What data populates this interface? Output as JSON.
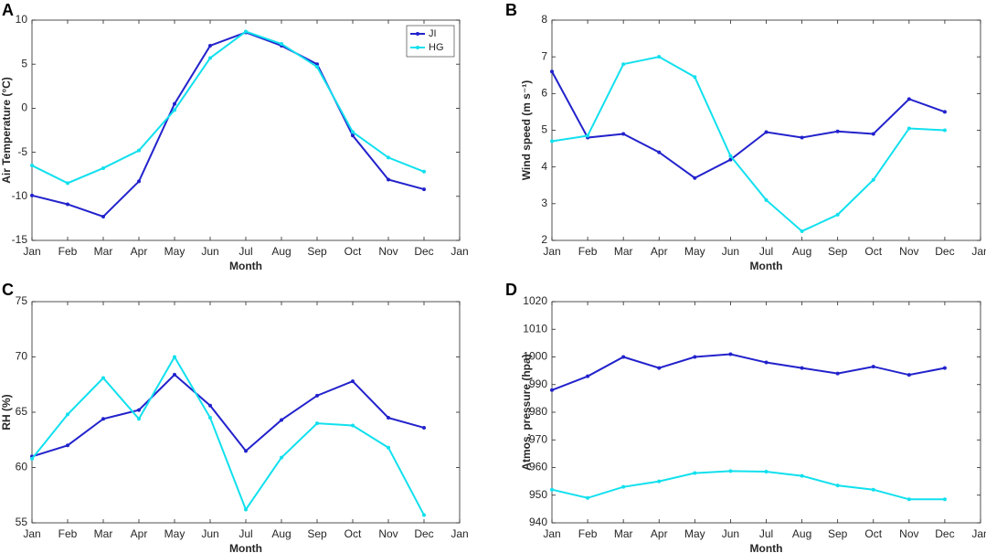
{
  "chart_data": [
    {
      "type": "line",
      "panel_label": "A",
      "ylabel": "Air Temperature (°C)",
      "xlabel": "Month",
      "categories": [
        "Jan",
        "Feb",
        "Mar",
        "Apr",
        "May",
        "Jun",
        "Jul",
        "Aug",
        "Sep",
        "Oct",
        "Nov",
        "Dec",
        "Jan"
      ],
      "ylim": [
        -15,
        10
      ],
      "yticks": [
        -15,
        -10,
        -5,
        0,
        5,
        10
      ],
      "legend": "northeast",
      "series": [
        {
          "name": "JI",
          "color": "#2222cc",
          "values": [
            -9.9,
            -10.9,
            -12.3,
            -8.3,
            0.5,
            7.1,
            8.6,
            7.1,
            5.0,
            -3.1,
            -8.1,
            -9.2,
            null
          ]
        },
        {
          "name": "HG",
          "color": "#11e0ee",
          "values": [
            -6.5,
            -8.5,
            -6.8,
            -4.8,
            -0.2,
            5.7,
            8.7,
            7.3,
            4.7,
            -2.7,
            -5.6,
            -7.2,
            null
          ]
        }
      ]
    },
    {
      "type": "line",
      "panel_label": "B",
      "ylabel": "Wind speed (m s⁻¹)",
      "xlabel": "Month",
      "categories": [
        "Jan",
        "Feb",
        "Mar",
        "Apr",
        "May",
        "Jun",
        "Jul",
        "Aug",
        "Sep",
        "Oct",
        "Nov",
        "Dec",
        "Jan"
      ],
      "ylim": [
        2,
        8
      ],
      "yticks": [
        2,
        3,
        4,
        5,
        6,
        7,
        8
      ],
      "series": [
        {
          "name": "JI",
          "color": "#2222cc",
          "values": [
            6.6,
            4.8,
            4.9,
            4.4,
            3.7,
            4.2,
            4.95,
            4.8,
            4.97,
            4.9,
            5.85,
            5.5,
            null
          ]
        },
        {
          "name": "HG",
          "color": "#11e0ee",
          "values": [
            4.7,
            4.85,
            6.8,
            7.0,
            6.45,
            4.3,
            3.1,
            2.25,
            2.7,
            3.65,
            5.05,
            5.0,
            null
          ]
        }
      ]
    },
    {
      "type": "line",
      "panel_label": "C",
      "ylabel": "RH (%)",
      "xlabel": "Month",
      "categories": [
        "Jan",
        "Feb",
        "Mar",
        "Apr",
        "May",
        "Jun",
        "Jul",
        "Aug",
        "Sep",
        "Oct",
        "Nov",
        "Dec",
        "Jan"
      ],
      "ylim": [
        55,
        75
      ],
      "yticks": [
        55,
        60,
        65,
        70,
        75
      ],
      "series": [
        {
          "name": "JI",
          "color": "#2222cc",
          "values": [
            61.0,
            62.0,
            64.4,
            65.2,
            68.4,
            65.6,
            61.5,
            64.3,
            66.5,
            67.8,
            64.5,
            63.6,
            null
          ]
        },
        {
          "name": "HG",
          "color": "#11e0ee",
          "values": [
            60.8,
            64.8,
            68.1,
            64.4,
            70.0,
            64.5,
            56.2,
            60.9,
            64.0,
            63.8,
            61.8,
            55.7,
            null
          ]
        }
      ]
    },
    {
      "type": "line",
      "panel_label": "D",
      "ylabel": "Atmos. pressure (hpa)",
      "xlabel": "Month",
      "categories": [
        "Jan",
        "Feb",
        "Mar",
        "Apr",
        "May",
        "Jun",
        "Jul",
        "Aug",
        "Sep",
        "Oct",
        "Nov",
        "Dec",
        "Jan"
      ],
      "ylim": [
        940,
        1020
      ],
      "yticks": [
        940,
        950,
        960,
        970,
        980,
        990,
        1000,
        1010,
        1020
      ],
      "series": [
        {
          "name": "JI",
          "color": "#2222cc",
          "values": [
            988,
            993,
            1000,
            996,
            1000,
            1001,
            998,
            996,
            994,
            996.5,
            993.5,
            996,
            null
          ]
        },
        {
          "name": "HG",
          "color": "#11e0ee",
          "values": [
            952,
            949,
            953,
            955,
            958,
            958.7,
            958.5,
            957,
            953.5,
            952,
            948.5,
            948.5,
            null
          ]
        }
      ]
    }
  ]
}
